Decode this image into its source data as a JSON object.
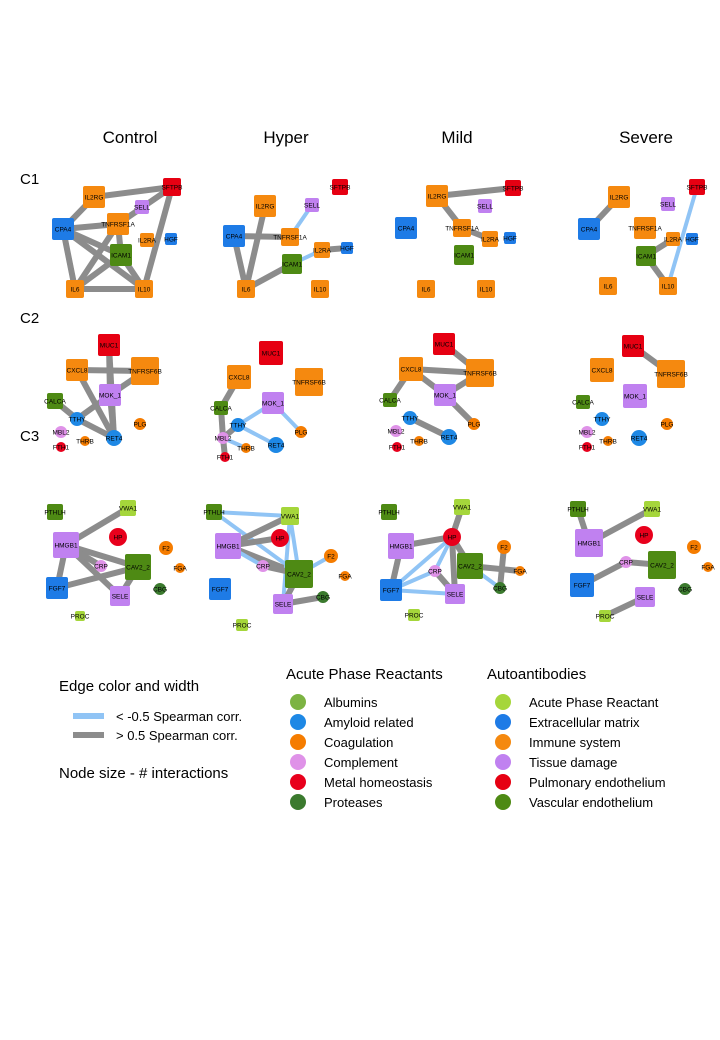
{
  "columns": [
    "Control",
    "Hyper",
    "Mild",
    "Severe"
  ],
  "rows": [
    "C1",
    "C2",
    "C3"
  ],
  "colors": {
    "albumins": "#7cb342",
    "amyloid": "#1e88e5",
    "coagulation": "#f57c00",
    "complement": "#df92e8",
    "metal": "#e8001c",
    "proteases": "#3b7a2e",
    "ab_acute": "#a5d63b",
    "ab_ecm": "#1e7be6",
    "ab_immune": "#f5890f",
    "ab_tissue": "#c081f0",
    "ab_pulmonary": "#e60012",
    "ab_vascular": "#4e8a14",
    "edge_pos": "#8c8c8c",
    "edge_neg": "#90c4f5"
  },
  "legend": {
    "edge_title": "Edge color and width",
    "edge_neg_label": "< -0.5 Spearman corr.",
    "edge_pos_label": ">  0.5 Spearman corr.",
    "size_title": "Node size - # interactions",
    "apr_title": "Acute Phase Reactants",
    "apr_items": [
      {
        "label": "Albumins",
        "color": "albumins"
      },
      {
        "label": "Amyloid related",
        "color": "amyloid"
      },
      {
        "label": "Coagulation",
        "color": "coagulation"
      },
      {
        "label": "Complement",
        "color": "complement"
      },
      {
        "label": "Metal homeostasis",
        "color": "metal"
      },
      {
        "label": "Proteases",
        "color": "proteases"
      }
    ],
    "ab_title": "Autoantibodies",
    "ab_items": [
      {
        "label": "Acute Phase Reactant",
        "color": "ab_acute"
      },
      {
        "label": "Extracellular matrix",
        "color": "ab_ecm"
      },
      {
        "label": "Immune system",
        "color": "ab_immune"
      },
      {
        "label": "Tissue damage",
        "color": "ab_tissue"
      },
      {
        "label": "Pulmonary endothelium",
        "color": "ab_pulmonary"
      },
      {
        "label": "Vascular endothelium",
        "color": "ab_vascular"
      }
    ]
  },
  "networks": {
    "C1": {
      "nodes": [
        {
          "id": "IL2RG",
          "label": "IL2RG",
          "shape": "square",
          "color": "ab_immune"
        },
        {
          "id": "SFTPB",
          "label": "SFTPB",
          "shape": "square",
          "color": "ab_pulmonary"
        },
        {
          "id": "SELL",
          "label": "SELL",
          "shape": "square",
          "color": "ab_tissue"
        },
        {
          "id": "CPA4",
          "label": "CPA4",
          "shape": "square",
          "color": "ab_ecm"
        },
        {
          "id": "TNFRSF1A",
          "label": "TNFRSF1A",
          "shape": "square",
          "color": "ab_immune"
        },
        {
          "id": "IL2RA",
          "label": "IL2RA",
          "shape": "square",
          "color": "ab_immune"
        },
        {
          "id": "HGF",
          "label": "HGF",
          "shape": "square",
          "color": "ab_ecm"
        },
        {
          "id": "ICAM1",
          "label": "ICAM1",
          "shape": "square",
          "color": "ab_vascular"
        },
        {
          "id": "IL6",
          "label": "IL6",
          "shape": "square",
          "color": "ab_immune"
        },
        {
          "id": "IL10",
          "label": "IL10",
          "shape": "square",
          "color": "ab_immune"
        }
      ],
      "panels": {
        "Control": {
          "edges": [
            [
              "IL2RG",
              "SFTPB",
              "pos"
            ],
            [
              "IL2RG",
              "CPA4",
              "pos"
            ],
            [
              "CPA4",
              "TNFRSF1A",
              "pos"
            ],
            [
              "CPA4",
              "ICAM1",
              "pos"
            ],
            [
              "CPA4",
              "IL6",
              "pos"
            ],
            [
              "CPA4",
              "IL10",
              "pos"
            ],
            [
              "IL6",
              "ICAM1",
              "pos"
            ],
            [
              "IL6",
              "IL10",
              "pos"
            ],
            [
              "ICAM1",
              "IL10",
              "pos"
            ],
            [
              "TNFRSF1A",
              "ICAM1",
              "pos"
            ],
            [
              "TNFRSF1A",
              "IL6",
              "pos"
            ],
            [
              "SFTPB",
              "IL10",
              "pos"
            ],
            [
              "SFTPB",
              "TNFRSF1A",
              "pos"
            ]
          ]
        },
        "Hyper": {
          "edges": [
            [
              "CPA4",
              "TNFRSF1A",
              "pos"
            ],
            [
              "CPA4",
              "IL6",
              "pos"
            ],
            [
              "IL2RG",
              "IL6",
              "pos"
            ],
            [
              "TNFRSF1A",
              "SELL",
              "neg"
            ],
            [
              "ICAM1",
              "IL2RA",
              "neg"
            ],
            [
              "IL2RA",
              "HGF",
              "pos"
            ],
            [
              "IL6",
              "ICAM1",
              "pos"
            ]
          ]
        },
        "Mild": {
          "edges": [
            [
              "IL2RG",
              "SFTPB",
              "pos"
            ],
            [
              "IL2RG",
              "TNFRSF1A",
              "pos"
            ],
            [
              "TNFRSF1A",
              "IL2RA",
              "pos"
            ]
          ]
        },
        "Severe": {
          "edges": [
            [
              "IL2RG",
              "CPA4",
              "pos"
            ],
            [
              "SFTPB",
              "IL10",
              "neg"
            ],
            [
              "ICAM1",
              "IL2RA",
              "pos"
            ],
            [
              "ICAM1",
              "IL10",
              "pos"
            ]
          ]
        }
      }
    },
    "C2": {
      "nodes": [
        {
          "id": "MUC1",
          "label": "MUC1",
          "shape": "square",
          "color": "ab_pulmonary"
        },
        {
          "id": "CXCL8",
          "label": "CXCL8",
          "shape": "square",
          "color": "ab_immune"
        },
        {
          "id": "TNFRSF6B",
          "label": "TNFRSF6B",
          "shape": "square",
          "color": "ab_immune"
        },
        {
          "id": "MOK_1",
          "label": "MOK_1",
          "shape": "square",
          "color": "ab_tissue"
        },
        {
          "id": "CALCA",
          "label": "CALCA",
          "shape": "square",
          "color": "ab_vascular"
        },
        {
          "id": "TTHY",
          "label": "TTHY",
          "shape": "circle",
          "color": "amyloid"
        },
        {
          "id": "PLG",
          "label": "PLG",
          "shape": "circle",
          "color": "coagulation"
        },
        {
          "id": "MBL2",
          "label": "MBL2",
          "shape": "circle",
          "color": "complement"
        },
        {
          "id": "RET4",
          "label": "RET4",
          "shape": "circle",
          "color": "amyloid"
        },
        {
          "id": "THRB",
          "label": "THRB",
          "shape": "circle",
          "color": "coagulation"
        },
        {
          "id": "FTH1",
          "label": "FTH1",
          "shape": "circle",
          "color": "metal"
        }
      ],
      "panels": {
        "Control": {
          "edges": [
            [
              "MUC1",
              "MOK_1",
              "pos"
            ],
            [
              "MUC1",
              "RET4",
              "pos"
            ],
            [
              "CXCL8",
              "TNFRSF6B",
              "pos"
            ],
            [
              "CXCL8",
              "RET4",
              "pos"
            ],
            [
              "TNFRSF6B",
              "MOK_1",
              "pos"
            ],
            [
              "MOK_1",
              "TTHY",
              "pos"
            ],
            [
              "CALCA",
              "TTHY",
              "pos"
            ],
            [
              "TTHY",
              "RET4",
              "pos"
            ],
            [
              "MOK_1",
              "RET4",
              "pos"
            ]
          ]
        },
        "Hyper": {
          "edges": [
            [
              "CXCL8",
              "CALCA",
              "pos"
            ],
            [
              "MOK_1",
              "TTHY",
              "neg"
            ],
            [
              "MOK_1",
              "PLG",
              "neg"
            ],
            [
              "TTHY",
              "MBL2",
              "pos"
            ],
            [
              "MBL2",
              "FTH1",
              "pos"
            ],
            [
              "MBL2",
              "THRB",
              "neg"
            ],
            [
              "CALCA",
              "MBL2",
              "pos"
            ],
            [
              "TTHY",
              "RET4",
              "neg"
            ]
          ]
        },
        "Mild": {
          "edges": [
            [
              "MUC1",
              "TNFRSF6B",
              "pos"
            ],
            [
              "CXCL8",
              "TNFRSF6B",
              "pos"
            ],
            [
              "CXCL8",
              "MOK_1",
              "pos"
            ],
            [
              "TNFRSF6B",
              "MOK_1",
              "pos"
            ],
            [
              "CXCL8",
              "CALCA",
              "pos"
            ],
            [
              "MOK_1",
              "PLG",
              "pos"
            ],
            [
              "TTHY",
              "RET4",
              "pos"
            ]
          ]
        },
        "Severe": {
          "edges": [
            [
              "MUC1",
              "TNFRSF6B",
              "pos"
            ]
          ]
        }
      }
    },
    "C3": {
      "nodes": [
        {
          "id": "PTHLH",
          "label": "PTHLH",
          "shape": "square",
          "color": "ab_vascular"
        },
        {
          "id": "VWA1",
          "label": "VWA1",
          "shape": "square",
          "color": "ab_acute"
        },
        {
          "id": "HMGB1",
          "label": "HMGB1",
          "shape": "square",
          "color": "ab_tissue"
        },
        {
          "id": "HP",
          "label": "HP",
          "shape": "circle",
          "color": "metal"
        },
        {
          "id": "CRP",
          "label": "CRP",
          "shape": "circle",
          "color": "complement"
        },
        {
          "id": "CAV2_2",
          "label": "CAV2_2",
          "shape": "square",
          "color": "ab_vascular"
        },
        {
          "id": "F2",
          "label": "F2",
          "shape": "circle",
          "color": "coagulation"
        },
        {
          "id": "FGA",
          "label": "FGA",
          "shape": "circle",
          "color": "coagulation"
        },
        {
          "id": "FGF7",
          "label": "FGF7",
          "shape": "square",
          "color": "ab_ecm"
        },
        {
          "id": "SELE",
          "label": "SELE",
          "shape": "square",
          "color": "ab_tissue"
        },
        {
          "id": "CBG",
          "label": "CBG",
          "shape": "circle",
          "color": "proteases"
        },
        {
          "id": "PROC",
          "label": "PROC",
          "shape": "square",
          "color": "ab_acute"
        }
      ],
      "panels": {
        "Control": {
          "edges": [
            [
              "HMGB1",
              "VWA1",
              "pos"
            ],
            [
              "HMGB1",
              "CAV2_2",
              "pos"
            ],
            [
              "HMGB1",
              "FGF7",
              "pos"
            ],
            [
              "HMGB1",
              "SELE",
              "pos"
            ],
            [
              "FGF7",
              "CAV2_2",
              "pos"
            ],
            [
              "CAV2_2",
              "SELE",
              "pos"
            ],
            [
              "HMGB1",
              "CRP",
              "pos"
            ]
          ]
        },
        "Hyper": {
          "edges": [
            [
              "PTHLH",
              "VWA1",
              "neg"
            ],
            [
              "PTHLH",
              "CAV2_2",
              "neg"
            ],
            [
              "HMGB1",
              "VWA1",
              "pos"
            ],
            [
              "HMGB1",
              "HP",
              "pos"
            ],
            [
              "HMGB1",
              "CAV2_2",
              "pos"
            ],
            [
              "HMGB1",
              "CRP",
              "neg"
            ],
            [
              "VWA1",
              "CAV2_2",
              "neg"
            ],
            [
              "VWA1",
              "SELE",
              "neg"
            ],
            [
              "CAV2_2",
              "F2",
              "neg"
            ],
            [
              "SELE",
              "CAV2_2",
              "pos"
            ],
            [
              "SELE",
              "CBG",
              "pos"
            ],
            [
              "CRP",
              "CAV2_2",
              "pos"
            ]
          ]
        },
        "Mild": {
          "edges": [
            [
              "HMGB1",
              "HP",
              "pos"
            ],
            [
              "HP",
              "VWA1",
              "pos"
            ],
            [
              "HP",
              "CRP",
              "neg"
            ],
            [
              "HP",
              "SELE",
              "pos"
            ],
            [
              "HP",
              "CAV2_2",
              "pos"
            ],
            [
              "FGF7",
              "HP",
              "neg"
            ],
            [
              "FGF7",
              "CRP",
              "neg"
            ],
            [
              "FGF7",
              "SELE",
              "neg"
            ],
            [
              "CRP",
              "SELE",
              "pos"
            ],
            [
              "CAV2_2",
              "CBG",
              "neg"
            ],
            [
              "F2",
              "CBG",
              "pos"
            ],
            [
              "CAV2_2",
              "FGA",
              "pos"
            ],
            [
              "HMGB1",
              "FGF7",
              "pos"
            ]
          ]
        },
        "Severe": {
          "edges": [
            [
              "PTHLH",
              "HMGB1",
              "pos"
            ],
            [
              "HMGB1",
              "VWA1",
              "pos"
            ],
            [
              "FGF7",
              "CRP",
              "pos"
            ],
            [
              "CRP",
              "CAV2_2",
              "pos"
            ],
            [
              "SELE",
              "PROC",
              "pos"
            ]
          ]
        }
      }
    }
  }
}
